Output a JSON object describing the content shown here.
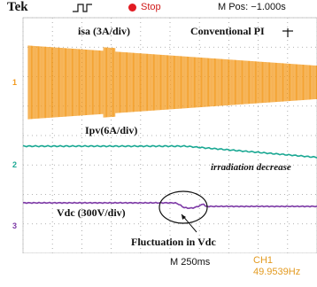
{
  "scope": {
    "brand": "Tek",
    "status": "Stop",
    "position": "M Pos: −1.000s",
    "timebase": "M 250ms",
    "channel": "CH1",
    "channel_value": "49.9539Hz",
    "colors": {
      "ch1": "#f39a1e",
      "ch2": "#1aa893",
      "ch3": "#7d3aa6",
      "stop": "#e11b22"
    }
  },
  "markers": {
    "ch1": "1",
    "ch2": "2",
    "ch3": "3"
  },
  "annotations": {
    "isa": "isa (3A/div)",
    "title": "Conventional PI",
    "ipv": "Ipv(6A/div)",
    "irradiation": "irradiation decrease",
    "vdc": "Vdc (300V/div)",
    "fluctuation": "Fluctuation in Vdc"
  }
}
